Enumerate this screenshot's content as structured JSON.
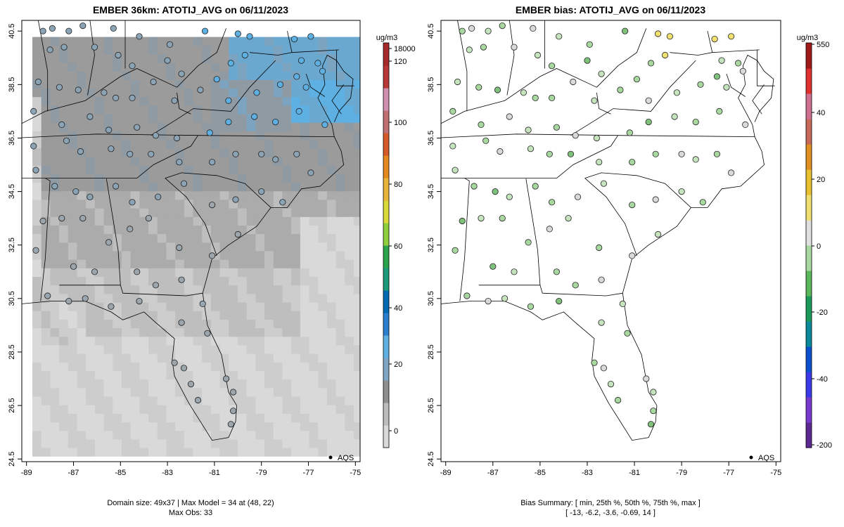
{
  "chart_data": [
    {
      "type": "map",
      "title": "EMBER 36km: ATOTIJ_AVG on 06/11/2023",
      "x_ticks": [
        "-89",
        "-87",
        "-85",
        "-83",
        "-81",
        "-79",
        "-77",
        "-75"
      ],
      "y_ticks": [
        "24.5",
        "26.5",
        "28.5",
        "30.5",
        "32.5",
        "34.5",
        "36.5",
        "38.5",
        "40.5"
      ],
      "xlim": [
        -89.2,
        -74.8
      ],
      "ylim": [
        24.4,
        40.9
      ],
      "colorbar": {
        "unit": "ug/m3",
        "labels": [
          "0",
          "20",
          "40",
          "60",
          "80",
          "100",
          "120",
          "18000"
        ],
        "colors": [
          "#d9d9d9",
          "#bdbdbd",
          "#8f8f8f",
          "#7fa7c5",
          "#5fb0e2",
          "#2b7fcf",
          "#006bb3",
          "#1a9a7a",
          "#2aa34a",
          "#8fcf3f",
          "#d9d93a",
          "#e8b43a",
          "#e48a20",
          "#d45a2a",
          "#c07070",
          "#d090b0",
          "#b83838",
          "#a52a2a"
        ]
      },
      "legend": {
        "label": "AQS",
        "position": "bottom-right"
      },
      "caption_lines": [
        "Domain size: 49x37 | Max Model = 34 at (48, 22)",
        "Max Obs: 33"
      ]
    },
    {
      "type": "map",
      "title": "EMBER bias: ATOTIJ_AVG on 06/11/2023",
      "x_ticks": [
        "-89",
        "-87",
        "-85",
        "-83",
        "-81",
        "-79",
        "-77",
        "-75"
      ],
      "y_ticks": [
        "24.5",
        "26.5",
        "28.5",
        "30.5",
        "32.5",
        "34.5",
        "36.5",
        "38.5",
        "40.5"
      ],
      "xlim": [
        -89.2,
        -74.8
      ],
      "ylim": [
        24.4,
        40.9
      ],
      "colorbar": {
        "unit": "ug/m3",
        "labels": [
          "-200",
          "-40",
          "-20",
          "0",
          "20",
          "40",
          "550"
        ],
        "colors": [
          "#5a2a90",
          "#7a3ad0",
          "#3a3ae8",
          "#0a50d0",
          "#0a8a9a",
          "#1a9a5a",
          "#5ab85a",
          "#a8d8a0",
          "#e0e0e0",
          "#f0e070",
          "#e8c030",
          "#e09020",
          "#c86a5a",
          "#d07090",
          "#e03030",
          "#a01a1a"
        ]
      },
      "legend": {
        "label": "AQS",
        "position": "bottom-right"
      },
      "caption_lines": [
        "Bias Summary: [ min, 25th %, 50th %, 75th %, max ]",
        "[ -13,   -6.2,   -3.6,   -0.69,   14 ]"
      ]
    }
  ]
}
